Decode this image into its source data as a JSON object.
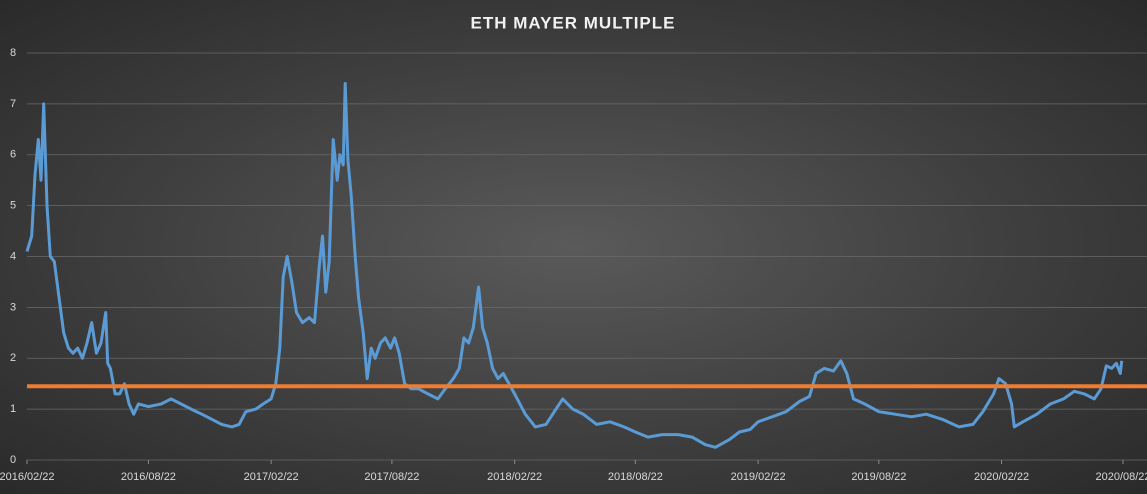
{
  "chart_data": {
    "type": "line",
    "title": "ETH MAYER MULTIPLE",
    "color": "#5b9bd5",
    "reference_line": {
      "value": 1.45,
      "color": "#ed7d31"
    },
    "ylim": [
      0,
      8
    ],
    "yticks": [
      0,
      1,
      2,
      3,
      4,
      5,
      6,
      7,
      8
    ],
    "grid": true,
    "xlim": [
      "2016/02/22",
      "2020/08/22"
    ],
    "xticks": [
      "2016/02/22",
      "2016/08/22",
      "2017/02/22",
      "2017/08/22",
      "2018/02/22",
      "2018/08/22",
      "2019/02/22",
      "2019/08/22",
      "2020/02/22",
      "2020/08/22"
    ],
    "x": [
      "2016/02/22",
      "2016/02/29",
      "2016/03/05",
      "2016/03/10",
      "2016/03/14",
      "2016/03/18",
      "2016/03/23",
      "2016/03/28",
      "2016/04/03",
      "2016/04/10",
      "2016/04/17",
      "2016/04/24",
      "2016/05/01",
      "2016/05/08",
      "2016/05/15",
      "2016/05/22",
      "2016/05/29",
      "2016/06/05",
      "2016/06/12",
      "2016/06/19",
      "2016/06/22",
      "2016/06/26",
      "2016/07/03",
      "2016/07/10",
      "2016/07/17",
      "2016/07/24",
      "2016/07/31",
      "2016/08/07",
      "2016/08/22",
      "2016/09/10",
      "2016/09/25",
      "2016/10/10",
      "2016/10/25",
      "2016/11/10",
      "2016/11/25",
      "2016/12/10",
      "2016/12/25",
      "2017/01/05",
      "2017/01/15",
      "2017/01/30",
      "2017/02/10",
      "2017/02/22",
      "2017/03/01",
      "2017/03/07",
      "2017/03/12",
      "2017/03/18",
      "2017/03/25",
      "2017/04/01",
      "2017/04/10",
      "2017/04/20",
      "2017/04/28",
      "2017/05/05",
      "2017/05/10",
      "2017/05/15",
      "2017/05/20",
      "2017/05/26",
      "2017/06/01",
      "2017/06/05",
      "2017/06/10",
      "2017/06/13",
      "2017/06/17",
      "2017/06/22",
      "2017/06/28",
      "2017/07/03",
      "2017/07/10",
      "2017/07/16",
      "2017/07/22",
      "2017/07/28",
      "2017/08/05",
      "2017/08/12",
      "2017/08/20",
      "2017/08/26",
      "2017/09/02",
      "2017/09/10",
      "2017/09/20",
      "2017/10/01",
      "2017/10/15",
      "2017/10/30",
      "2017/11/10",
      "2017/11/22",
      "2017/12/01",
      "2017/12/08",
      "2017/12/15",
      "2017/12/22",
      "2017/12/30",
      "2018/01/05",
      "2018/01/12",
      "2018/01/20",
      "2018/01/28",
      "2018/02/05",
      "2018/02/22",
      "2018/03/10",
      "2018/03/25",
      "2018/04/10",
      "2018/04/25",
      "2018/05/05",
      "2018/05/20",
      "2018/06/05",
      "2018/06/25",
      "2018/07/15",
      "2018/08/05",
      "2018/08/22",
      "2018/09/10",
      "2018/10/01",
      "2018/10/25",
      "2018/11/15",
      "2018/12/05",
      "2018/12/20",
      "2019/01/10",
      "2019/01/25",
      "2019/02/10",
      "2019/02/22",
      "2019/03/15",
      "2019/04/05",
      "2019/04/25",
      "2019/05/10",
      "2019/05/20",
      "2019/06/01",
      "2019/06/15",
      "2019/06/26",
      "2019/07/05",
      "2019/07/15",
      "2019/08/01",
      "2019/08/22",
      "2019/09/15",
      "2019/10/10",
      "2019/11/01",
      "2019/11/25",
      "2019/12/20",
      "2020/01/10",
      "2020/01/25",
      "2020/02/10",
      "2020/02/18",
      "2020/02/28",
      "2020/03/08",
      "2020/03/12",
      "2020/03/25",
      "2020/04/15",
      "2020/05/05",
      "2020/05/25",
      "2020/06/10",
      "2020/06/25",
      "2020/07/10",
      "2020/07/20",
      "2020/07/28",
      "2020/08/05",
      "2020/08/12",
      "2020/08/18",
      "2020/08/20"
    ],
    "values": [
      4.1,
      4.4,
      5.6,
      6.3,
      5.5,
      7.0,
      5.0,
      4.0,
      3.9,
      3.2,
      2.5,
      2.2,
      2.1,
      2.2,
      2.0,
      2.3,
      2.7,
      2.1,
      2.3,
      2.9,
      1.9,
      1.8,
      1.3,
      1.3,
      1.5,
      1.1,
      0.9,
      1.1,
      1.05,
      1.1,
      1.2,
      1.1,
      1.0,
      0.9,
      0.8,
      0.7,
      0.65,
      0.7,
      0.95,
      1.0,
      1.1,
      1.2,
      1.5,
      2.2,
      3.6,
      4.0,
      3.5,
      2.9,
      2.7,
      2.8,
      2.7,
      3.8,
      4.4,
      3.3,
      3.9,
      6.3,
      5.5,
      6.0,
      5.8,
      7.4,
      5.9,
      5.2,
      4.0,
      3.2,
      2.5,
      1.6,
      2.2,
      2.0,
      2.3,
      2.4,
      2.2,
      2.4,
      2.1,
      1.5,
      1.4,
      1.4,
      1.3,
      1.2,
      1.4,
      1.6,
      1.8,
      2.4,
      2.3,
      2.6,
      3.4,
      2.6,
      2.3,
      1.8,
      1.6,
      1.7,
      1.3,
      0.9,
      0.65,
      0.7,
      1.0,
      1.2,
      1.0,
      0.9,
      0.7,
      0.75,
      0.65,
      0.55,
      0.45,
      0.5,
      0.5,
      0.45,
      0.3,
      0.25,
      0.4,
      0.55,
      0.6,
      0.75,
      0.85,
      0.95,
      1.15,
      1.25,
      1.7,
      1.8,
      1.75,
      1.95,
      1.7,
      1.2,
      1.1,
      0.95,
      0.9,
      0.85,
      0.9,
      0.8,
      0.65,
      0.7,
      0.95,
      1.3,
      1.6,
      1.5,
      1.1,
      0.65,
      0.75,
      0.9,
      1.1,
      1.2,
      1.35,
      1.3,
      1.2,
      1.4,
      1.85,
      1.8,
      1.9,
      1.7,
      1.95
    ]
  }
}
